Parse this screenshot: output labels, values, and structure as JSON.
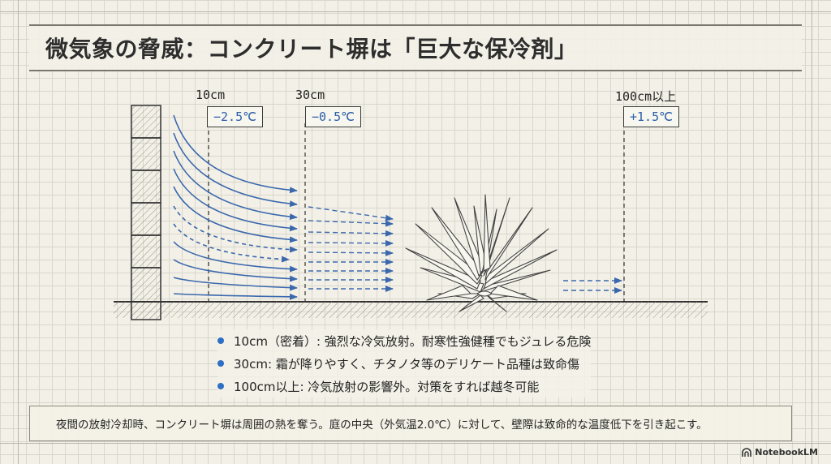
{
  "title": "微気象の脅威：コンクリート塀は「巨大な保冷剤」",
  "positions": [
    {
      "distance": "10cm",
      "temp": "−2.5℃"
    },
    {
      "distance": "30cm",
      "temp": "−0.5℃"
    },
    {
      "distance": "100cm以上",
      "temp": "+1.5℃"
    }
  ],
  "bullets": [
    "10cm（密着）: 強烈な冷気放射。耐寒性強健種でもジュレる危険",
    "30cm: 霜が降りやすく、チタノタ等のデリケート品種は致命傷",
    "100cm以上: 冷気放射の影響外。対策をすれば越冬可能"
  ],
  "caption": "夜間の放射冷却時、コンクリート塀は周囲の熱を奪う。庭の中央（外気温2.0℃）に対して、壁際は致命的な温度低下を引き起こす。",
  "brand": "NotebookLM",
  "colors": {
    "arrow": "#3b68ad",
    "accent": "#2c6fc4",
    "ink": "#333333"
  },
  "icons": [
    "notebooklm-logo-icon"
  ]
}
